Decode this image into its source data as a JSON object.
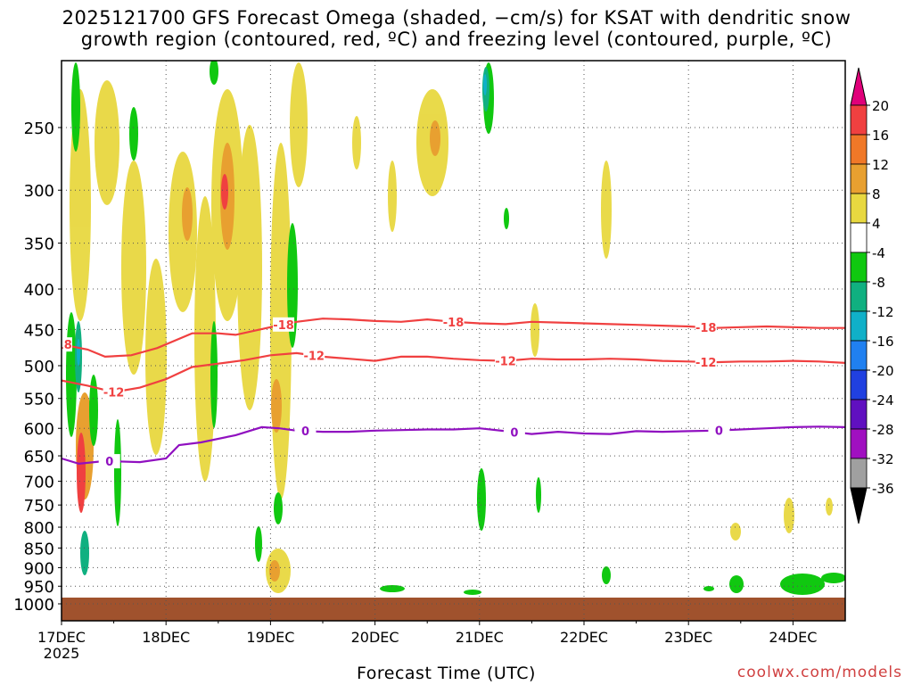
{
  "title": {
    "line1": "2025121700 GFS Forecast Omega (shaded, −cm/s) for KSAT with dendritic snow",
    "line2": "growth region (contoured, red, ºC) and freezing level (contoured, purple, ºC)"
  },
  "credit": "coolwx.com/models",
  "chart_data": {
    "type": "heatmap",
    "xlabel": "Forecast Time (UTC)",
    "x_ticks": [
      "17DEC",
      "18DEC",
      "19DEC",
      "20DEC",
      "21DEC",
      "22DEC",
      "23DEC",
      "24DEC"
    ],
    "x_tick_sub": "2025",
    "x_range_hours": [
      0,
      180
    ],
    "y_ticks": [
      250,
      300,
      350,
      400,
      450,
      500,
      550,
      600,
      650,
      700,
      750,
      800,
      850,
      900,
      950,
      1000
    ],
    "y_range_hPa": [
      200,
      1020
    ],
    "grid": true,
    "colorbar": {
      "levels": [
        20,
        16,
        12,
        8,
        4,
        -4,
        -8,
        -12,
        -16,
        -20,
        -24,
        -28,
        -32,
        -36
      ],
      "colors": [
        "#e0007a",
        "#f04040",
        "#f07828",
        "#e8a030",
        "#e8d840",
        "#ffffff",
        "#10c810",
        "#10b080",
        "#10b0c8",
        "#2080f0",
        "#2040e0",
        "#6010c0",
        "#a010c0",
        "#a0a0a0",
        "#000000"
      ]
    },
    "contours": [
      {
        "name": "-18",
        "color": "#f04040",
        "label_times": [
          -2,
          51,
          90,
          148
        ],
        "points": [
          [
            0,
            470
          ],
          [
            6,
            477
          ],
          [
            10,
            487
          ],
          [
            16,
            485
          ],
          [
            22,
            475
          ],
          [
            30,
            455
          ],
          [
            36,
            455
          ],
          [
            40,
            457
          ],
          [
            48,
            447
          ],
          [
            54,
            440
          ],
          [
            60,
            436
          ],
          [
            66,
            437
          ],
          [
            72,
            439
          ],
          [
            78,
            440
          ],
          [
            84,
            437
          ],
          [
            90,
            440
          ],
          [
            96,
            442
          ],
          [
            102,
            443
          ],
          [
            108,
            440
          ],
          [
            114,
            441
          ],
          [
            120,
            442
          ],
          [
            126,
            443
          ],
          [
            132,
            444
          ],
          [
            138,
            445
          ],
          [
            144,
            446
          ],
          [
            150,
            448
          ],
          [
            156,
            447
          ],
          [
            162,
            446
          ],
          [
            168,
            447
          ],
          [
            174,
            448
          ],
          [
            180,
            448
          ]
        ]
      },
      {
        "name": "-12",
        "color": "#f04040",
        "label_times": [
          12,
          58,
          102,
          148
        ],
        "points": [
          [
            0,
            522
          ],
          [
            6,
            530
          ],
          [
            12,
            540
          ],
          [
            18,
            533
          ],
          [
            24,
            520
          ],
          [
            30,
            502
          ],
          [
            36,
            497
          ],
          [
            42,
            492
          ],
          [
            48,
            485
          ],
          [
            54,
            482
          ],
          [
            60,
            487
          ],
          [
            66,
            490
          ],
          [
            72,
            493
          ],
          [
            78,
            487
          ],
          [
            84,
            487
          ],
          [
            90,
            490
          ],
          [
            96,
            492
          ],
          [
            102,
            493
          ],
          [
            108,
            490
          ],
          [
            114,
            491
          ],
          [
            120,
            491
          ],
          [
            126,
            490
          ],
          [
            132,
            491
          ],
          [
            138,
            493
          ],
          [
            144,
            494
          ],
          [
            150,
            495
          ],
          [
            156,
            494
          ],
          [
            162,
            494
          ],
          [
            168,
            493
          ],
          [
            174,
            494
          ],
          [
            180,
            496
          ]
        ]
      },
      {
        "name": "0",
        "color": "#9010c0",
        "label_times": [
          11,
          56,
          104,
          151
        ],
        "points": [
          [
            0,
            655
          ],
          [
            4,
            665
          ],
          [
            10,
            660
          ],
          [
            18,
            662
          ],
          [
            24,
            655
          ],
          [
            27,
            630
          ],
          [
            32,
            625
          ],
          [
            40,
            612
          ],
          [
            46,
            598
          ],
          [
            50,
            600
          ],
          [
            54,
            604
          ],
          [
            60,
            606
          ],
          [
            66,
            606
          ],
          [
            72,
            604
          ],
          [
            78,
            603
          ],
          [
            84,
            602
          ],
          [
            90,
            602
          ],
          [
            96,
            600
          ],
          [
            102,
            605
          ],
          [
            108,
            610
          ],
          [
            114,
            606
          ],
          [
            120,
            609
          ],
          [
            126,
            610
          ],
          [
            132,
            605
          ],
          [
            138,
            606
          ],
          [
            144,
            605
          ],
          [
            150,
            604
          ],
          [
            156,
            602
          ],
          [
            162,
            600
          ],
          [
            168,
            598
          ],
          [
            174,
            597
          ],
          [
            180,
            598
          ]
        ]
      }
    ]
  }
}
